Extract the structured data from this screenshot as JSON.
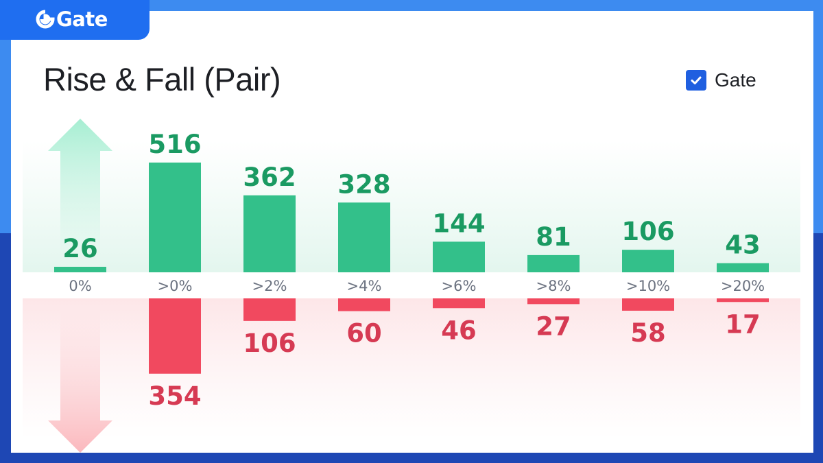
{
  "brand": {
    "name": "Gate"
  },
  "title": "Rise & Fall (Pair)",
  "legend": {
    "label": "Gate",
    "checked": true
  },
  "colors": {
    "rise": "#33c08a",
    "rise_text": "#1a9a62",
    "fall": "#f1495f",
    "fall_text": "#d63a53",
    "brand": "#1f6ef0"
  },
  "icons": [
    "gate-logo-icon",
    "checkmark-icon",
    "up-arrow-icon",
    "down-arrow-icon"
  ],
  "chart_data": {
    "type": "bar",
    "categories": [
      "0%",
      ">0%",
      ">2%",
      ">4%",
      ">6%",
      ">8%",
      ">10%",
      ">20%"
    ],
    "series": [
      {
        "name": "Rise",
        "values": [
          26,
          516,
          362,
          328,
          144,
          81,
          106,
          43
        ]
      },
      {
        "name": "Fall",
        "values": [
          0,
          354,
          106,
          60,
          46,
          27,
          58,
          17
        ]
      }
    ],
    "data_labels": {
      "rise": [
        "26",
        "516",
        "362",
        "328",
        "144",
        "81",
        "106",
        "43"
      ],
      "fall": [
        "",
        "354",
        "106",
        "60",
        "46",
        "27",
        "58",
        "17"
      ]
    },
    "title": "Rise & Fall (Pair)",
    "xlabel": "",
    "ylabel": "",
    "grid": false
  }
}
